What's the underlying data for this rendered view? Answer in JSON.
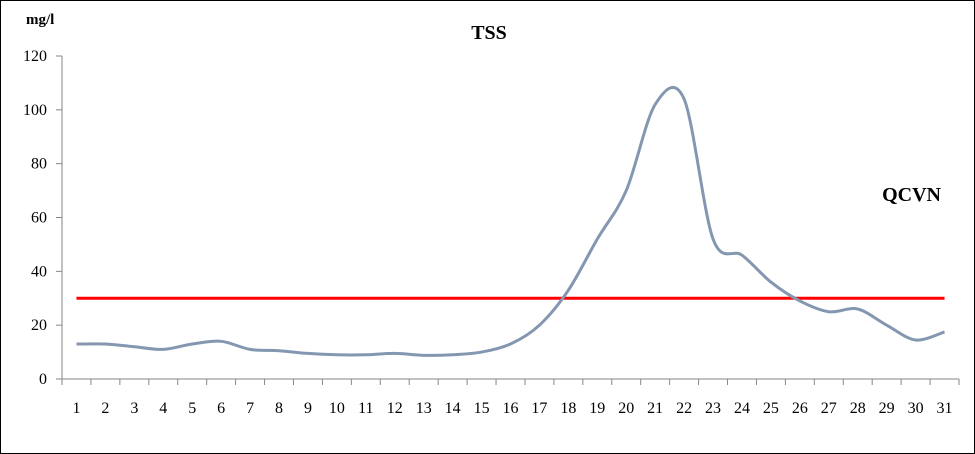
{
  "chart_data": {
    "type": "line",
    "title": "TSS",
    "ylabel": "mg/l",
    "xlabel": "",
    "ylim": [
      0,
      120
    ],
    "yticks": [
      0,
      20,
      40,
      60,
      80,
      100,
      120
    ],
    "grid": false,
    "categories": [
      "1",
      "2",
      "3",
      "4",
      "5",
      "6",
      "7",
      "8",
      "9",
      "10",
      "11",
      "12",
      "13",
      "14",
      "15",
      "16",
      "17",
      "18",
      "19",
      "20",
      "21",
      "22",
      "23",
      "24",
      "25",
      "26",
      "27",
      "28",
      "29",
      "30",
      "31"
    ],
    "series": [
      {
        "color": "#8497B0",
        "values": [
          13,
          13,
          12,
          11,
          13,
          14,
          11,
          10.5,
          9.5,
          9,
          9,
          9.5,
          8.8,
          9,
          10,
          13,
          20,
          33,
          52,
          70,
          102,
          104,
          52,
          46,
          36,
          29,
          25,
          26,
          20,
          14.5,
          17.5
        ]
      }
    ],
    "reference_line": {
      "label": "QCVN",
      "value": 30,
      "color": "#FF0000"
    }
  }
}
